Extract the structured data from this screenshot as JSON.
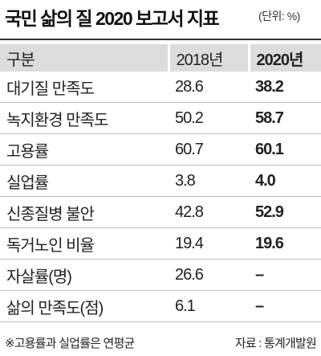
{
  "header": {
    "title": "국민 삶의 질 2020 보고서 지표",
    "unit": "(단위: %)"
  },
  "table": {
    "columns": [
      "구분",
      "2018년",
      "2020년"
    ],
    "rows": [
      [
        "대기질 만족도",
        "28.6",
        "38.2"
      ],
      [
        "녹지환경 만족도",
        "50.2",
        "58.7"
      ],
      [
        "고용률",
        "60.7",
        "60.1"
      ],
      [
        "실업률",
        "3.8",
        "4.0"
      ],
      [
        "신종질병 불안",
        "42.8",
        "52.9"
      ],
      [
        "독거노인 비율",
        "19.4",
        "19.6"
      ],
      [
        "자살률(명)",
        "26.6",
        "–"
      ],
      [
        "삶의 만족도(점)",
        "6.1",
        "–"
      ]
    ]
  },
  "footer": {
    "note": "※고용률과 실업률은 연평균",
    "source": "자료 : 통계개발원"
  }
}
